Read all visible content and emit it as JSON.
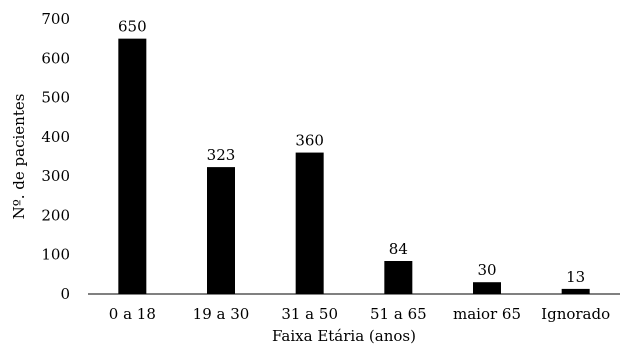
{
  "chart_data": {
    "type": "bar",
    "categories": [
      "0 a 18",
      "19 a 30",
      "31 a 50",
      "51 a 65",
      "maior 65",
      "Ignorado"
    ],
    "values": [
      650,
      323,
      360,
      84,
      30,
      13
    ],
    "data_labels": [
      "650",
      "323",
      "360",
      "84",
      "30",
      "13"
    ],
    "xlabel": "Faixa Etária (anos)",
    "ylabel": "Nº. de pacientes",
    "ylim": [
      0,
      700
    ],
    "yticks": [
      0,
      100,
      200,
      300,
      400,
      500,
      600,
      700
    ],
    "grid": false,
    "legend": "none",
    "bar_color": "#000000"
  }
}
